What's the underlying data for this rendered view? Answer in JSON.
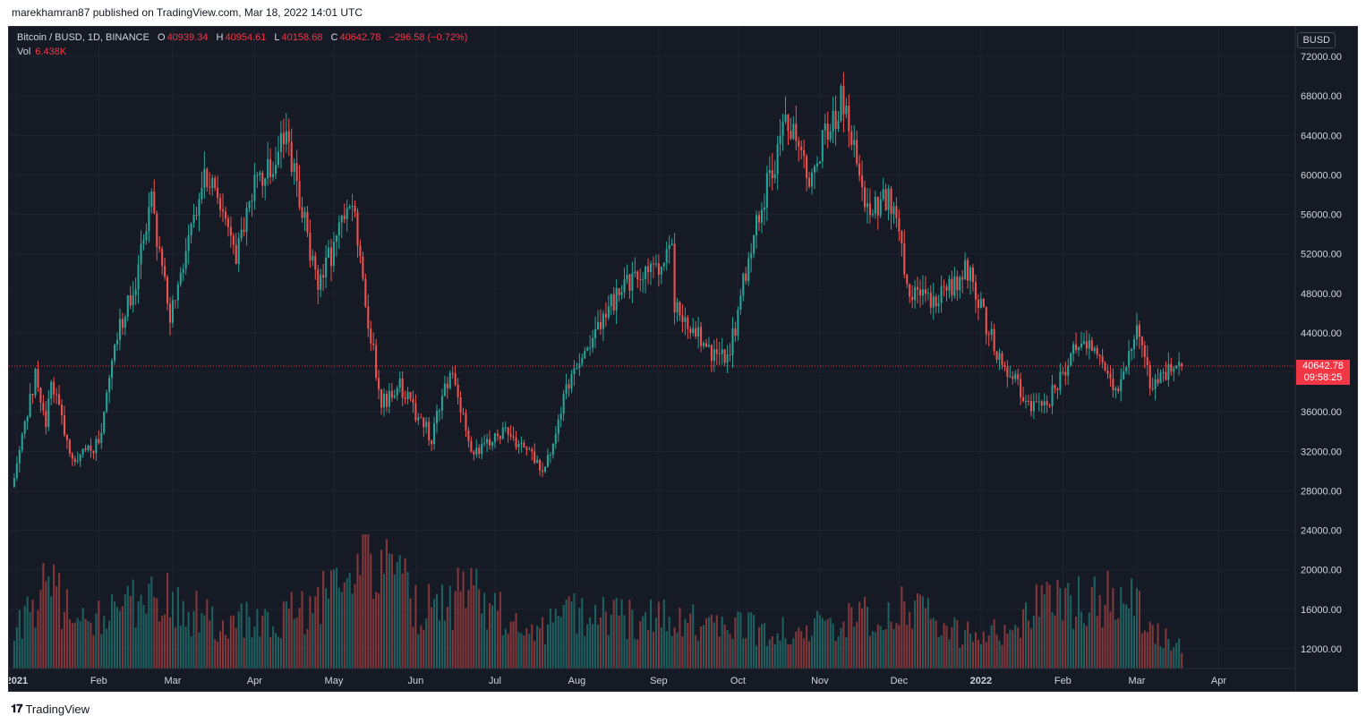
{
  "header": {
    "published_line": "marekhamran87 published on TradingView.com, Mar 18, 2022 14:01 UTC"
  },
  "legend": {
    "symbol": "Bitcoin / BUSD, 1D, BINANCE",
    "open_label": "O",
    "open": "40939.34",
    "high_label": "H",
    "high": "40954.61",
    "low_label": "L",
    "low": "40158.68",
    "close_label": "C",
    "close": "40642.78",
    "change": "−296.58 (−0.72%)",
    "vol_label": "Vol",
    "vol": "6.438K"
  },
  "price_axis": {
    "currency": "BUSD",
    "last_price": "40642.78",
    "countdown": "09:58:25"
  },
  "footer": {
    "brand": "TradingView",
    "logo": "tv-logo-icon"
  },
  "colors": {
    "background": "#161a25",
    "up": "#26a69a",
    "down": "#ef5350",
    "text": "#d1d4dc",
    "grid": "#1f2330",
    "last_price": "#f23645"
  },
  "chart_data": {
    "type": "candlestick",
    "symbol": "Bitcoin / BUSD",
    "interval": "1D",
    "exchange": "BINANCE",
    "ylim": [
      10000,
      75000
    ],
    "yticks": [
      12000,
      16000,
      20000,
      24000,
      28000,
      32000,
      36000,
      40000,
      44000,
      48000,
      52000,
      56000,
      60000,
      64000,
      68000,
      72000
    ],
    "ytick_labels": [
      "12000.00",
      "16000.00",
      "20000.00",
      "24000.00",
      "28000.00",
      "32000.00",
      "36000.00",
      "40000.00",
      "44000.00",
      "48000.00",
      "52000.00",
      "56000.00",
      "60000.00",
      "64000.00",
      "68000.00",
      "72000.00"
    ],
    "x_start": "2020-12-29",
    "x_end": "2022-04-30",
    "xticks": [
      {
        "date": "2021-01-01",
        "label": "2021",
        "bold": true
      },
      {
        "date": "2021-02-01",
        "label": "Feb"
      },
      {
        "date": "2021-03-01",
        "label": "Mar"
      },
      {
        "date": "2021-04-01",
        "label": "Apr"
      },
      {
        "date": "2021-05-01",
        "label": "May"
      },
      {
        "date": "2021-06-01",
        "label": "Jun"
      },
      {
        "date": "2021-07-01",
        "label": "Jul"
      },
      {
        "date": "2021-08-01",
        "label": "Aug"
      },
      {
        "date": "2021-09-01",
        "label": "Sep"
      },
      {
        "date": "2021-10-01",
        "label": "Oct"
      },
      {
        "date": "2021-11-01",
        "label": "Nov"
      },
      {
        "date": "2021-12-01",
        "label": "Dec"
      },
      {
        "date": "2022-01-01",
        "label": "2022",
        "bold": true
      },
      {
        "date": "2022-02-01",
        "label": "Feb"
      },
      {
        "date": "2022-03-01",
        "label": "Mar"
      },
      {
        "date": "2022-04-01",
        "label": "Apr"
      }
    ],
    "last_price": 40642.78,
    "close_path": [
      [
        "2020-12-31",
        29000
      ],
      [
        "2021-01-08",
        40000
      ],
      [
        "2021-01-12",
        34000
      ],
      [
        "2021-01-14",
        39000
      ],
      [
        "2021-01-22",
        31000
      ],
      [
        "2021-02-01",
        33000
      ],
      [
        "2021-02-08",
        44000
      ],
      [
        "2021-02-14",
        48000
      ],
      [
        "2021-02-21",
        57500
      ],
      [
        "2021-02-28",
        45000
      ],
      [
        "2021-03-13",
        61000
      ],
      [
        "2021-03-25",
        52000
      ],
      [
        "2021-04-01",
        59000
      ],
      [
        "2021-04-13",
        63500
      ],
      [
        "2021-04-25",
        49000
      ],
      [
        "2021-05-08",
        57000
      ],
      [
        "2021-05-12",
        49000
      ],
      [
        "2021-05-19",
        37000
      ],
      [
        "2021-05-26",
        38500
      ],
      [
        "2021-06-07",
        33500
      ],
      [
        "2021-06-14",
        40000
      ],
      [
        "2021-06-22",
        32000
      ],
      [
        "2021-07-06",
        34000
      ],
      [
        "2021-07-20",
        30000
      ],
      [
        "2021-07-30",
        40000
      ],
      [
        "2021-08-14",
        47000
      ],
      [
        "2021-08-20",
        49000
      ],
      [
        "2021-09-06",
        52000
      ],
      [
        "2021-09-07",
        46500
      ],
      [
        "2021-09-21",
        42000
      ],
      [
        "2021-09-28",
        42000
      ],
      [
        "2021-10-07",
        54500
      ],
      [
        "2021-10-20",
        65500
      ],
      [
        "2021-10-28",
        60000
      ],
      [
        "2021-11-09",
        67500
      ],
      [
        "2021-11-19",
        57000
      ],
      [
        "2021-11-29",
        57500
      ],
      [
        "2021-12-04",
        49000
      ],
      [
        "2021-12-13",
        46800
      ],
      [
        "2021-12-27",
        50500
      ],
      [
        "2022-01-07",
        41800
      ],
      [
        "2022-01-21",
        36200
      ],
      [
        "2022-01-26",
        36800
      ],
      [
        "2022-02-08",
        44000
      ],
      [
        "2022-02-21",
        37800
      ],
      [
        "2022-03-01",
        44000
      ],
      [
        "2022-03-07",
        38200
      ],
      [
        "2022-03-17",
        41000
      ],
      [
        "2022-03-18",
        40642.78
      ]
    ],
    "volume_path": [
      [
        "2021-01-01",
        0.3
      ],
      [
        "2021-01-11",
        0.6
      ],
      [
        "2021-01-30",
        0.35
      ],
      [
        "2021-02-23",
        0.55
      ],
      [
        "2021-03-15",
        0.35
      ],
      [
        "2021-04-18",
        0.4
      ],
      [
        "2021-05-19",
        1.0
      ],
      [
        "2021-06-01",
        0.45
      ],
      [
        "2021-06-22",
        0.55
      ],
      [
        "2021-07-15",
        0.25
      ],
      [
        "2021-08-01",
        0.4
      ],
      [
        "2021-09-07",
        0.35
      ],
      [
        "2021-10-01",
        0.3
      ],
      [
        "2021-11-01",
        0.3
      ],
      [
        "2021-12-04",
        0.45
      ],
      [
        "2022-01-01",
        0.2
      ],
      [
        "2022-01-22",
        0.45
      ],
      [
        "2022-02-24",
        0.55
      ],
      [
        "2022-03-15",
        0.2
      ]
    ]
  }
}
